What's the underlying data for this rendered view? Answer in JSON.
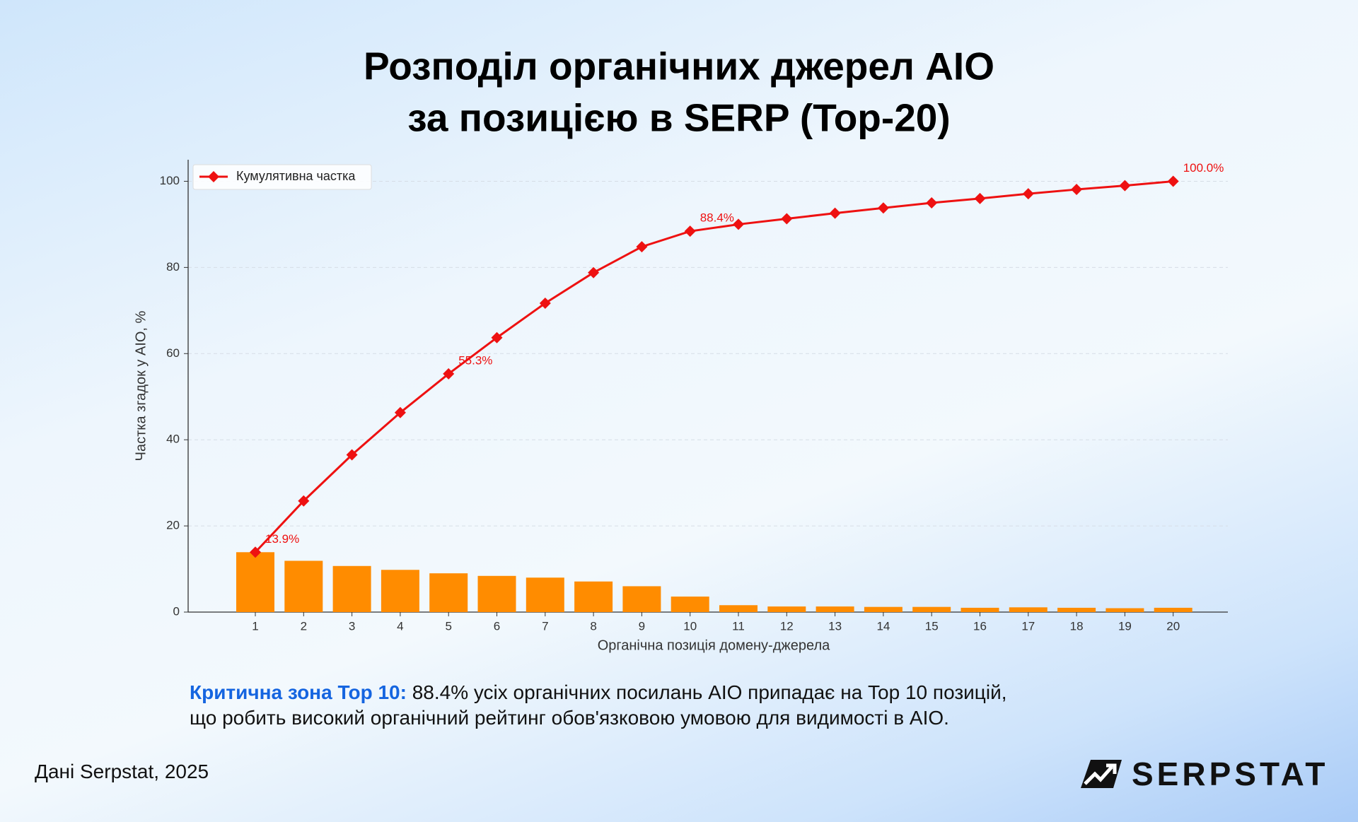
{
  "chart_data": {
    "type": "combo",
    "title": [
      "Розподіл органічних джерел AIO",
      "за позицією в SERP (Top-20)"
    ],
    "x_label": "Органічна позиція домену-джерела",
    "y_label": "Частка згадок у AIO, %",
    "categories": [
      "1",
      "2",
      "3",
      "4",
      "5",
      "6",
      "7",
      "8",
      "9",
      "10",
      "11",
      "12",
      "13",
      "14",
      "15",
      "16",
      "17",
      "18",
      "19",
      "20"
    ],
    "series": [
      {
        "type": "bar",
        "color": "#ff8c00",
        "values": [
          13.9,
          11.9,
          10.7,
          9.8,
          9.0,
          8.4,
          8.0,
          7.1,
          6.0,
          3.6,
          1.6,
          1.3,
          1.3,
          1.2,
          1.2,
          1.0,
          1.1,
          1.0,
          0.9,
          1.0
        ]
      },
      {
        "type": "line",
        "name": "Кумулятивна частка",
        "color": "#ee1111",
        "values": [
          13.9,
          25.8,
          36.5,
          46.3,
          55.3,
          63.7,
          71.7,
          78.8,
          84.8,
          88.4,
          90.0,
          91.3,
          92.6,
          93.8,
          95.0,
          96.0,
          97.1,
          98.1,
          99.0,
          100.0
        ],
        "value_labels": [
          "13.9%",
          null,
          null,
          null,
          "55.3%",
          null,
          null,
          null,
          null,
          "88.4%",
          null,
          null,
          null,
          null,
          null,
          null,
          null,
          null,
          null,
          "100.0%"
        ]
      }
    ],
    "ylim": [
      0,
      105
    ],
    "yticks": [
      0,
      20,
      40,
      60,
      80,
      100
    ],
    "grid": true,
    "legend": "upper left"
  },
  "note": {
    "highlight": "Критична зона Top 10:",
    "lines": [
      "88.4% усіх органічних посилань AIO припадає на Top 10 позицій,",
      "що робить високий органічний рейтинг обов'язковою умовою для видимості в AIO."
    ]
  },
  "source": "Дані Serpstat, 2025",
  "logo": "SERPSTAT"
}
